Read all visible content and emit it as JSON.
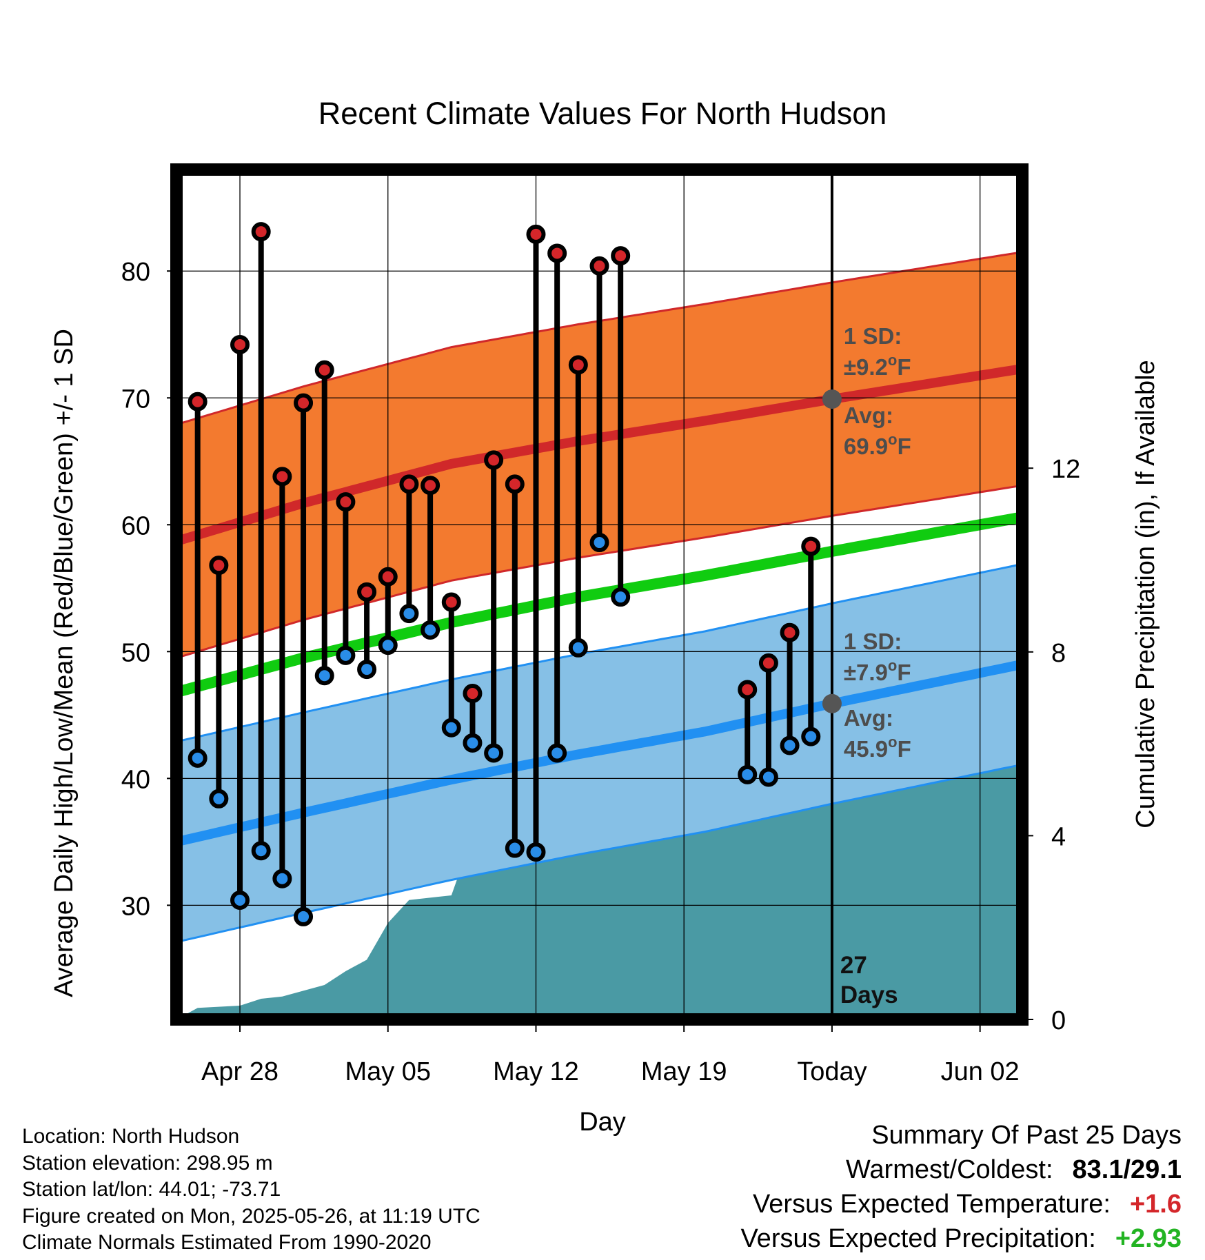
{
  "chart_data": {
    "type": "line",
    "title": "Recent Climate Values For North Hudson",
    "xlabel": "Day",
    "ylabel": "Average Daily High/Low/Mean (Red/Blue/Green) +/- 1 SD",
    "y2label": "Cumulative Precipitation (in), If Available",
    "ylim": [
      21,
      88
    ],
    "y2lim": [
      0,
      18.5
    ],
    "yticks": [
      "30",
      "40",
      "50",
      "60",
      "70",
      "80"
    ],
    "y2ticks": [
      "0",
      "4",
      "8",
      "12"
    ],
    "xticks": [
      "Apr 28",
      "May 05",
      "May 12",
      "May 19",
      "Today",
      "Jun 02"
    ],
    "xlim": [
      "2025-04-25",
      "2025-06-04"
    ],
    "grid": true,
    "today": "2025-05-26",
    "today_label": "27 Days",
    "normal_high_avg": [
      {
        "x": "2025-04-25",
        "y": 58.7
      },
      {
        "x": "2025-05-01",
        "y": 61.7
      },
      {
        "x": "2025-05-08",
        "y": 64.8
      },
      {
        "x": "2025-05-14",
        "y": 66.6
      },
      {
        "x": "2025-05-20",
        "y": 68.2
      },
      {
        "x": "2025-05-26",
        "y": 69.9
      },
      {
        "x": "2025-06-04",
        "y": 72.3
      }
    ],
    "normal_high_sd": 9.2,
    "normal_low_avg": [
      {
        "x": "2025-04-25",
        "y": 35.0
      },
      {
        "x": "2025-05-01",
        "y": 37.3
      },
      {
        "x": "2025-05-08",
        "y": 39.9
      },
      {
        "x": "2025-05-14",
        "y": 41.9
      },
      {
        "x": "2025-05-20",
        "y": 43.7
      },
      {
        "x": "2025-05-26",
        "y": 45.9
      },
      {
        "x": "2025-06-04",
        "y": 49.0
      }
    ],
    "normal_low_sd": 7.9,
    "normal_mean_avg": [
      {
        "x": "2025-04-25",
        "y": 46.8
      },
      {
        "x": "2025-05-01",
        "y": 49.5
      },
      {
        "x": "2025-05-08",
        "y": 52.3
      },
      {
        "x": "2025-05-14",
        "y": 54.3
      },
      {
        "x": "2025-05-20",
        "y": 56.0
      },
      {
        "x": "2025-05-26",
        "y": 57.9
      },
      {
        "x": "2025-06-04",
        "y": 60.6
      }
    ],
    "daily": [
      {
        "date": "2025-04-26",
        "high": 69.7,
        "low": 41.6
      },
      {
        "date": "2025-04-27",
        "high": 56.8,
        "low": 38.4
      },
      {
        "date": "2025-04-28",
        "high": 74.2,
        "low": 30.4
      },
      {
        "date": "2025-04-29",
        "high": 83.1,
        "low": 34.3
      },
      {
        "date": "2025-04-30",
        "high": 63.8,
        "low": 32.1
      },
      {
        "date": "2025-05-01",
        "high": 69.6,
        "low": 29.1
      },
      {
        "date": "2025-05-02",
        "high": 72.2,
        "low": 48.1
      },
      {
        "date": "2025-05-03",
        "high": 61.8,
        "low": 49.7
      },
      {
        "date": "2025-05-04",
        "high": 54.7,
        "low": 48.6
      },
      {
        "date": "2025-05-05",
        "high": 55.9,
        "low": 50.5
      },
      {
        "date": "2025-05-06",
        "high": 63.2,
        "low": 53.0
      },
      {
        "date": "2025-05-07",
        "high": 63.1,
        "low": 51.7
      },
      {
        "date": "2025-05-08",
        "high": 53.9,
        "low": 44.0
      },
      {
        "date": "2025-05-09",
        "high": 46.7,
        "low": 42.8
      },
      {
        "date": "2025-05-10",
        "high": 65.1,
        "low": 42.0
      },
      {
        "date": "2025-05-11",
        "high": 63.2,
        "low": 34.5
      },
      {
        "date": "2025-05-12",
        "high": 82.9,
        "low": 34.2
      },
      {
        "date": "2025-05-13",
        "high": 81.4,
        "low": 42.0
      },
      {
        "date": "2025-05-14",
        "high": 72.6,
        "low": 50.3
      },
      {
        "date": "2025-05-15",
        "high": 80.4,
        "low": 58.6
      },
      {
        "date": "2025-05-16",
        "high": 81.2,
        "low": 54.3
      },
      {
        "date": "2025-05-22",
        "high": 47.0,
        "low": 40.3
      },
      {
        "date": "2025-05-23",
        "high": 49.1,
        "low": 40.1
      },
      {
        "date": "2025-05-24",
        "high": 51.5,
        "low": 42.6
      },
      {
        "date": "2025-05-25",
        "high": 58.3,
        "low": 43.3
      }
    ],
    "cumulative_precip": [
      {
        "x": "2025-04-25",
        "y": 0.0
      },
      {
        "x": "2025-04-26",
        "y": 0.25
      },
      {
        "x": "2025-04-28",
        "y": 0.3
      },
      {
        "x": "2025-04-29",
        "y": 0.45
      },
      {
        "x": "2025-04-30",
        "y": 0.5
      },
      {
        "x": "2025-05-02",
        "y": 0.75
      },
      {
        "x": "2025-05-03",
        "y": 1.05
      },
      {
        "x": "2025-05-04",
        "y": 1.3
      },
      {
        "x": "2025-05-05",
        "y": 2.1
      },
      {
        "x": "2025-05-06",
        "y": 2.6
      },
      {
        "x": "2025-05-08",
        "y": 2.7
      },
      {
        "x": "2025-05-09",
        "y": 4.0
      },
      {
        "x": "2025-05-10",
        "y": 4.1
      },
      {
        "x": "2025-05-15",
        "y": 4.1
      },
      {
        "x": "2025-05-16",
        "y": 4.6
      },
      {
        "x": "2025-05-17",
        "y": 5.6
      },
      {
        "x": "2025-05-20",
        "y": 5.6
      },
      {
        "x": "2025-05-21",
        "y": 5.8
      },
      {
        "x": "2025-05-22",
        "y": 6.1
      },
      {
        "x": "2025-05-23",
        "y": 6.45
      },
      {
        "x": "2025-05-24",
        "y": 6.65
      },
      {
        "x": "2025-06-04",
        "y": 6.65
      }
    ],
    "colors": {
      "high_band": "#f37a2f",
      "high_line": "#d0282a",
      "low_band": "#86c0e6",
      "low_line": "#2190f2",
      "mean_line": "#10cc10",
      "precip": "#4a9aa4",
      "high_marker": "#d4262a",
      "low_marker": "#2a8de8",
      "annotation": "#4d4d4d"
    },
    "annotations": {
      "high_sd_title": "1 SD:",
      "high_sd_value": "±9.2",
      "high_avg_title": "Avg:",
      "high_avg_value": "69.9",
      "low_sd_title": "1 SD:",
      "low_sd_value": "±7.9",
      "low_avg_title": "Avg:",
      "low_avg_value": "45.9",
      "degree": "o",
      "unit": "F"
    }
  },
  "info": {
    "location": "Location: North Hudson",
    "elevation": "Station elevation: 298.95 m",
    "latlon": "Station lat/lon: 44.01; -73.71",
    "created": "Figure created on Mon, 2025-05-26, at 11:19 UTC",
    "normals": "Climate Normals Estimated From 1990-2020"
  },
  "summary": {
    "title": "Summary Of Past 25 Days",
    "warmest_coldest_label": "Warmest/Coldest:",
    "warmest_coldest_value": "83.1/29.1",
    "temp_label": "Versus Expected Temperature:",
    "temp_value": "+1.6",
    "temp_color": "#d4262a",
    "precip_label": "Versus Expected Precipitation:",
    "precip_value": "+2.93",
    "precip_color": "#22b422"
  }
}
